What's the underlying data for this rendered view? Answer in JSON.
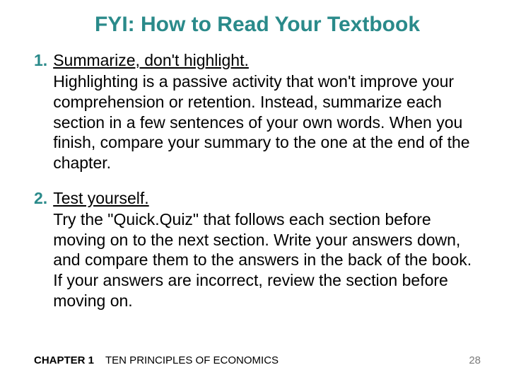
{
  "title": {
    "text": "FYI:  How to Read Your Textbook",
    "color": "#2a8a8a",
    "fontsize": 30
  },
  "items": [
    {
      "num": "1.",
      "num_color": "#2a8a8a",
      "lead": "Summarize, don't highlight.",
      "body": "Highlighting is a passive activity that won't improve your comprehension or retention.  Instead, summarize each section in a few sentences of your own words.  When you finish, compare your summary to the one at the end of the chapter.",
      "text_color": "#000000",
      "fontsize": 23
    },
    {
      "num": "2.",
      "num_color": "#2a8a8a",
      "lead": "Test yourself.",
      "body": "Try the \"Quick.Quiz\" that follows each section before moving on to the next section.  Write your answers down, and compare them to the answers in the back of the book.  If your answers are incorrect, review the section before moving on.",
      "text_color": "#000000",
      "fontsize": 23
    }
  ],
  "footer": {
    "chapter_label": "CHAPTER 1",
    "chapter_title": "TEN PRINCIPLES OF ECONOMICS",
    "page_num": "28",
    "label_color": "#000000",
    "page_color": "#7a7a7a",
    "fontsize": 15
  },
  "background_color": "#ffffff"
}
